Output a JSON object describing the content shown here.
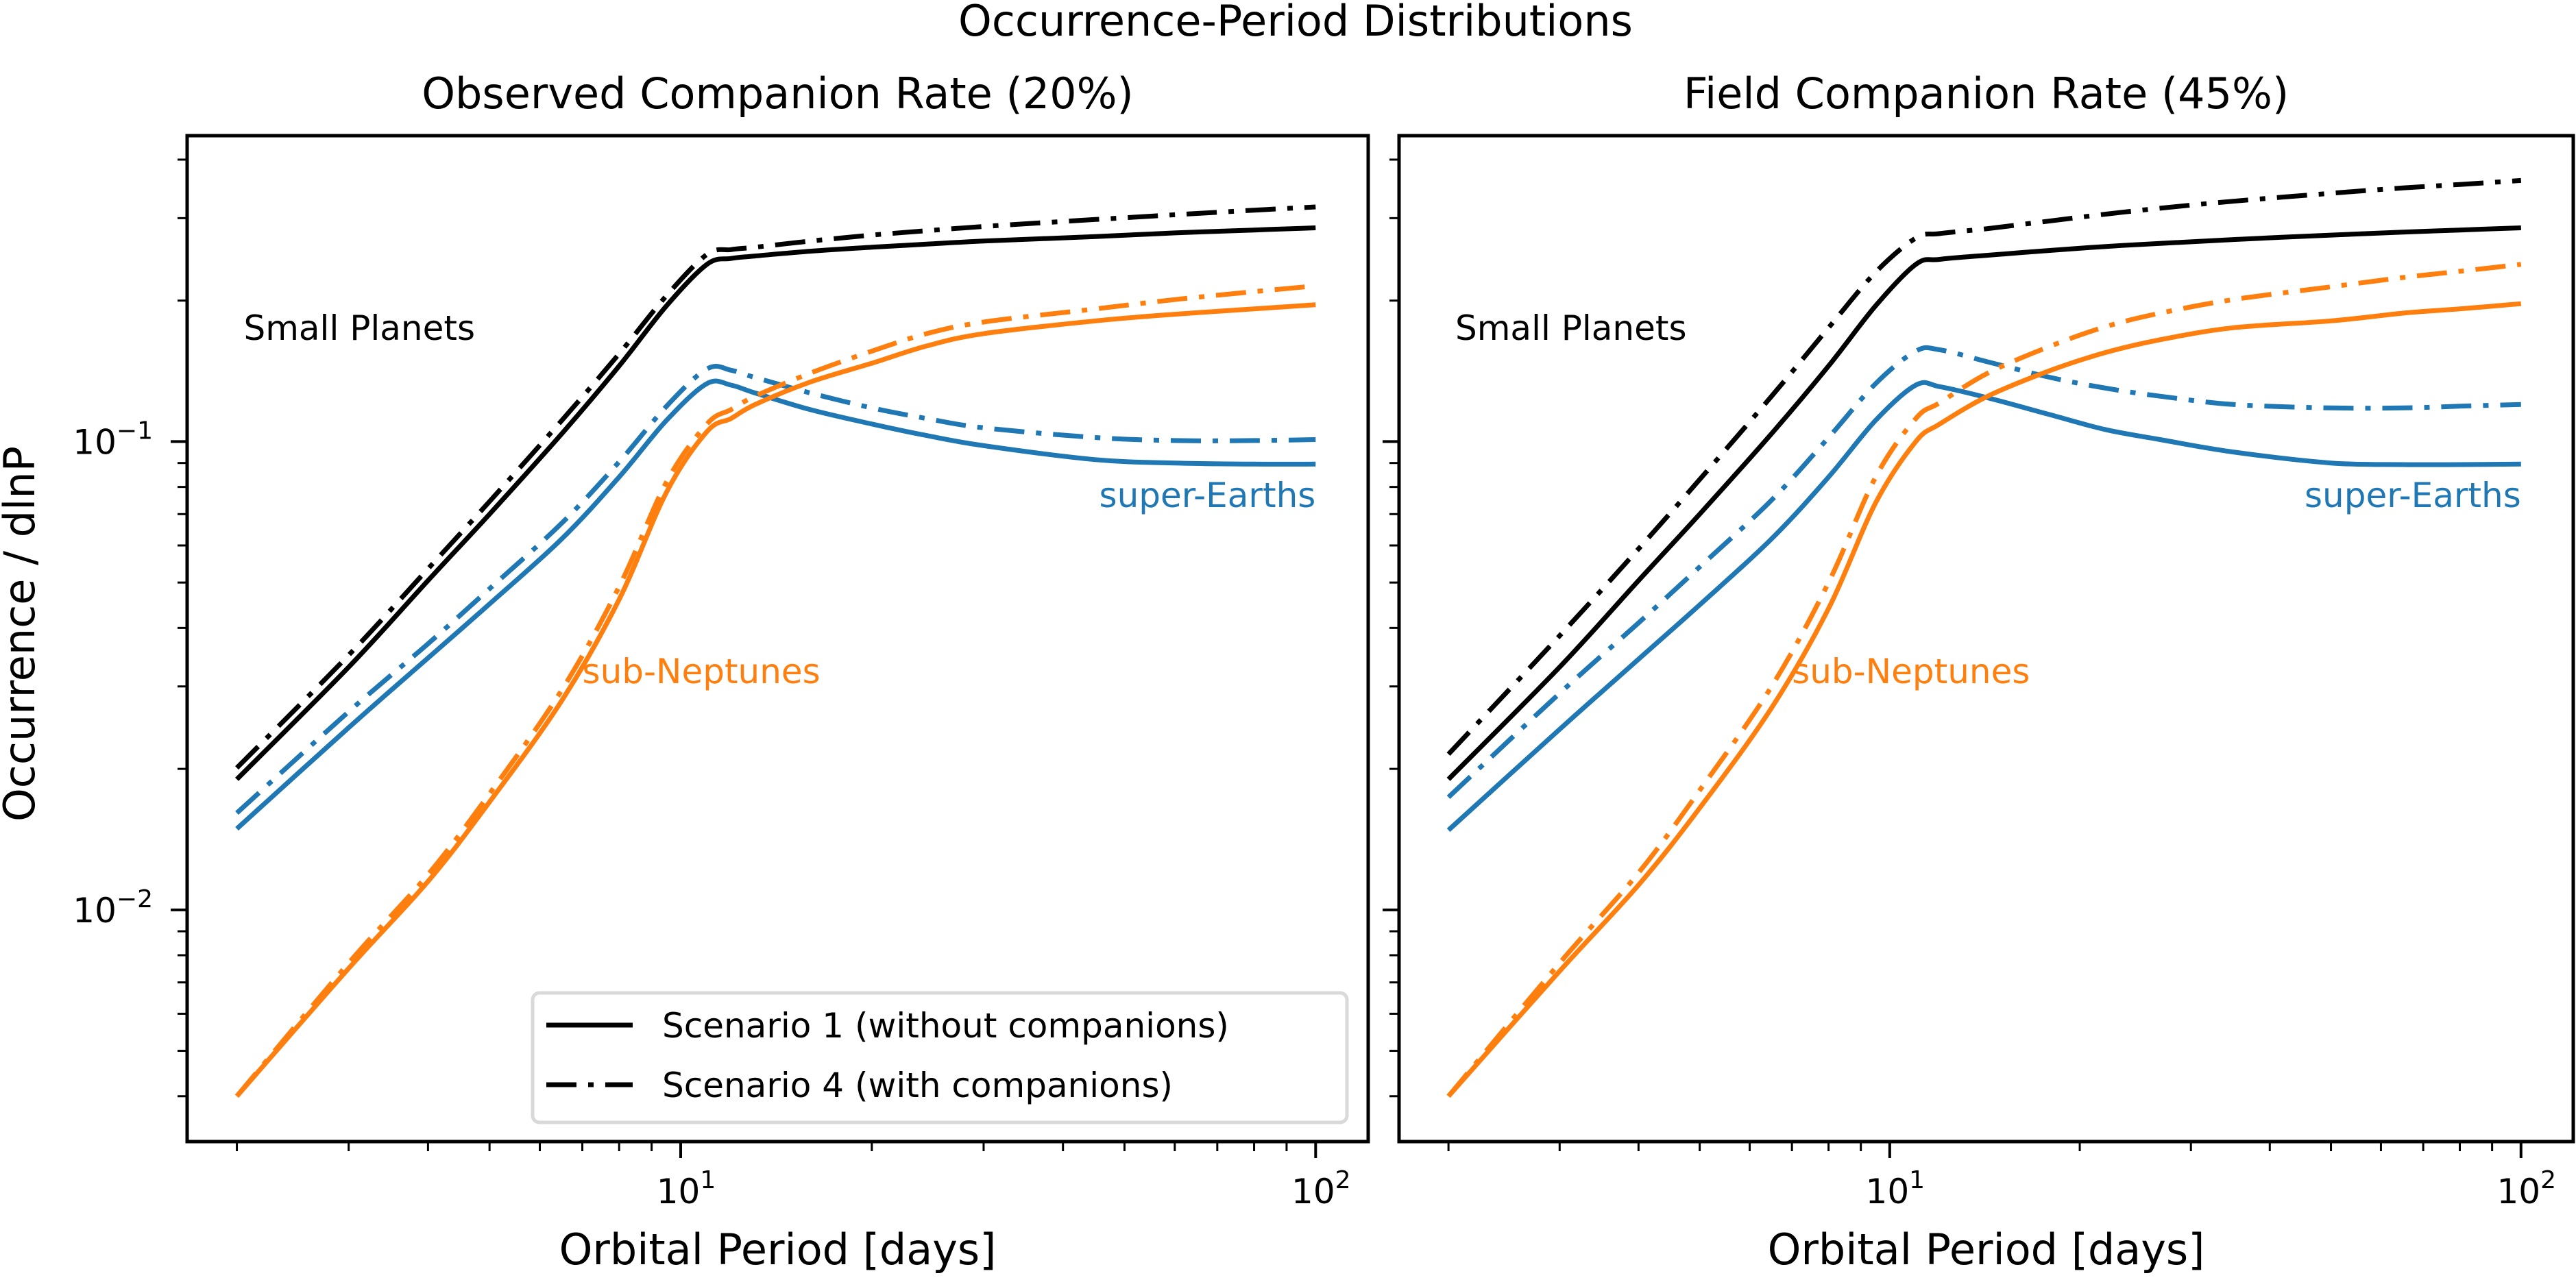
{
  "figure": {
    "suptitle": "Occurrence-Period Distributions",
    "ylabel": "Occurrence / dlnP",
    "xlabel": "Orbital Period [days]"
  },
  "colors": {
    "small_planets": "#000000",
    "super_earths": "#1f77b4",
    "sub_neptunes": "#ff7f0e",
    "legend_frame": "#d9d9d9"
  },
  "legend": {
    "location": "lower-right of left panel",
    "entries": [
      {
        "label": "Scenario 1 (without companions)",
        "linestyle": "solid"
      },
      {
        "label": "Scenario 4 (with companions)",
        "linestyle": "dashdot"
      }
    ]
  },
  "chart_data": [
    {
      "type": "line",
      "title": "Observed Companion Rate (20%)",
      "xlabel": "Orbital Period [days]",
      "ylabel": "Occurrence / dlnP",
      "xscale": "log",
      "yscale": "log",
      "xlim": [
        1.67,
        121
      ],
      "ylim": [
        0.0032,
        0.45
      ],
      "xticks": [
        {
          "value": 10,
          "label": "10",
          "exp": "1"
        },
        {
          "value": 100,
          "label": "10",
          "exp": "2"
        }
      ],
      "yticks": [
        {
          "value": 0.1,
          "label": "10",
          "exp": "−1"
        },
        {
          "value": 0.01,
          "label": "10",
          "exp": "−2"
        }
      ],
      "show_ytick_labels": true,
      "grid": false,
      "annotations": [
        {
          "text": "Small Planets",
          "color_key": "small_planets",
          "x": 2.05,
          "y": 0.165,
          "anchor": "start"
        },
        {
          "text": "super-Earths",
          "color_key": "super_earths",
          "x": 100,
          "y": 0.0725,
          "anchor": "end"
        },
        {
          "text": "sub-Neptunes",
          "color_key": "sub_neptunes",
          "x": 7.0,
          "y": 0.0305,
          "anchor": "start"
        }
      ],
      "show_legend": true,
      "x": [
        2,
        3,
        4,
        5,
        6.5,
        8,
        9.5,
        11,
        12,
        13.1,
        16,
        20,
        24.4,
        30,
        45,
        60,
        80,
        100
      ],
      "series": [
        {
          "name": "Small Planets (Scenario 1)",
          "color_key": "small_planets",
          "linestyle": "solid",
          "values": [
            0.019,
            0.033,
            0.0505,
            0.07,
            0.104,
            0.145,
            0.195,
            0.239,
            0.246,
            0.249,
            0.255,
            0.26,
            0.264,
            0.268,
            0.274,
            0.279,
            0.283,
            0.286
          ]
        },
        {
          "name": "Small Planets (Scenario 4)",
          "color_key": "small_planets",
          "linestyle": "dashdot",
          "values": [
            0.0201,
            0.035,
            0.0535,
            0.0745,
            0.111,
            0.154,
            0.205,
            0.251,
            0.257,
            0.26,
            0.268,
            0.276,
            0.282,
            0.288,
            0.298,
            0.305,
            0.312,
            0.317
          ]
        },
        {
          "name": "super-Earths (Scenario 1)",
          "color_key": "super_earths",
          "linestyle": "solid",
          "values": [
            0.0149,
            0.0245,
            0.0345,
            0.045,
            0.062,
            0.084,
            0.111,
            0.133,
            0.132,
            0.127,
            0.117,
            0.109,
            0.103,
            0.098,
            0.0915,
            0.09,
            0.0895,
            0.0895
          ]
        },
        {
          "name": "super-Earths (Scenario 4)",
          "color_key": "super_earths",
          "linestyle": "dashdot",
          "values": [
            0.0161,
            0.0265,
            0.037,
            0.0485,
            0.067,
            0.0905,
            0.119,
            0.143,
            0.142,
            0.137,
            0.127,
            0.118,
            0.112,
            0.107,
            0.102,
            0.1005,
            0.1005,
            0.101
          ]
        },
        {
          "name": "sub-Neptunes (Scenario 1)",
          "color_key": "sub_neptunes",
          "linestyle": "solid",
          "values": [
            0.004,
            0.0075,
            0.0115,
            0.017,
            0.028,
            0.046,
            0.078,
            0.105,
            0.112,
            0.12,
            0.134,
            0.147,
            0.16,
            0.17,
            0.181,
            0.187,
            0.192,
            0.196
          ]
        },
        {
          "name": "sub-Neptunes (Scenario 4)",
          "color_key": "sub_neptunes",
          "linestyle": "dashdot",
          "values": [
            0.004,
            0.0077,
            0.0119,
            0.0177,
            0.0295,
            0.049,
            0.082,
            0.109,
            0.117,
            0.125,
            0.14,
            0.156,
            0.17,
            0.18,
            0.192,
            0.201,
            0.209,
            0.215
          ]
        }
      ]
    },
    {
      "type": "line",
      "title": "Field Companion Rate (45%)",
      "xlabel": "Orbital Period [days]",
      "ylabel": "",
      "xscale": "log",
      "yscale": "log",
      "xlim": [
        1.67,
        121
      ],
      "ylim": [
        0.0032,
        0.45
      ],
      "xticks": [
        {
          "value": 10,
          "label": "10",
          "exp": "1"
        },
        {
          "value": 100,
          "label": "10",
          "exp": "2"
        }
      ],
      "yticks": [
        {
          "value": 0.1,
          "label": "",
          "exp": ""
        },
        {
          "value": 0.01,
          "label": "",
          "exp": ""
        }
      ],
      "show_ytick_labels": false,
      "grid": false,
      "annotations": [
        {
          "text": "Small Planets",
          "color_key": "small_planets",
          "x": 2.05,
          "y": 0.165,
          "anchor": "start"
        },
        {
          "text": "super-Earths",
          "color_key": "super_earths",
          "x": 100,
          "y": 0.0725,
          "anchor": "end"
        },
        {
          "text": "sub-Neptunes",
          "color_key": "sub_neptunes",
          "x": 7.0,
          "y": 0.0305,
          "anchor": "start"
        }
      ],
      "show_legend": false,
      "x": [
        2,
        3,
        4,
        5,
        6.5,
        8,
        9.5,
        11,
        12,
        14.3,
        18,
        22,
        26.8,
        35,
        50,
        65,
        80,
        100
      ],
      "series": [
        {
          "name": "Small Planets (Scenario 1)",
          "color_key": "small_planets",
          "linestyle": "solid",
          "values": [
            0.019,
            0.033,
            0.0505,
            0.07,
            0.104,
            0.145,
            0.195,
            0.239,
            0.245,
            0.25,
            0.256,
            0.261,
            0.265,
            0.27,
            0.276,
            0.28,
            0.283,
            0.286
          ]
        },
        {
          "name": "Small Planets (Scenario 4)",
          "color_key": "small_planets",
          "linestyle": "dashdot",
          "values": [
            0.0215,
            0.0385,
            0.059,
            0.083,
            0.125,
            0.175,
            0.23,
            0.272,
            0.278,
            0.285,
            0.296,
            0.306,
            0.315,
            0.326,
            0.339,
            0.348,
            0.354,
            0.361
          ]
        },
        {
          "name": "super-Earths (Scenario 1)",
          "color_key": "super_earths",
          "linestyle": "solid",
          "values": [
            0.0148,
            0.0243,
            0.0343,
            0.0448,
            0.062,
            0.084,
            0.111,
            0.132,
            0.131,
            0.124,
            0.114,
            0.106,
            0.101,
            0.095,
            0.09,
            0.0893,
            0.0893,
            0.0895
          ]
        },
        {
          "name": "super-Earths (Scenario 4)",
          "color_key": "super_earths",
          "linestyle": "dashdot",
          "values": [
            0.0174,
            0.029,
            0.041,
            0.054,
            0.075,
            0.102,
            0.133,
            0.156,
            0.157,
            0.148,
            0.137,
            0.13,
            0.125,
            0.12,
            0.118,
            0.118,
            0.119,
            0.12
          ]
        },
        {
          "name": "sub-Neptunes (Scenario 1)",
          "color_key": "sub_neptunes",
          "linestyle": "solid",
          "values": [
            0.004,
            0.0074,
            0.0113,
            0.0165,
            0.027,
            0.044,
            0.074,
            0.1,
            0.109,
            0.125,
            0.142,
            0.155,
            0.165,
            0.175,
            0.181,
            0.188,
            0.192,
            0.197
          ]
        },
        {
          "name": "sub-Neptunes (Scenario 4)",
          "color_key": "sub_neptunes",
          "linestyle": "dashdot",
          "values": [
            0.004,
            0.0077,
            0.012,
            0.018,
            0.03,
            0.05,
            0.084,
            0.112,
            0.121,
            0.14,
            0.16,
            0.176,
            0.188,
            0.201,
            0.214,
            0.224,
            0.231,
            0.239
          ]
        }
      ]
    }
  ]
}
